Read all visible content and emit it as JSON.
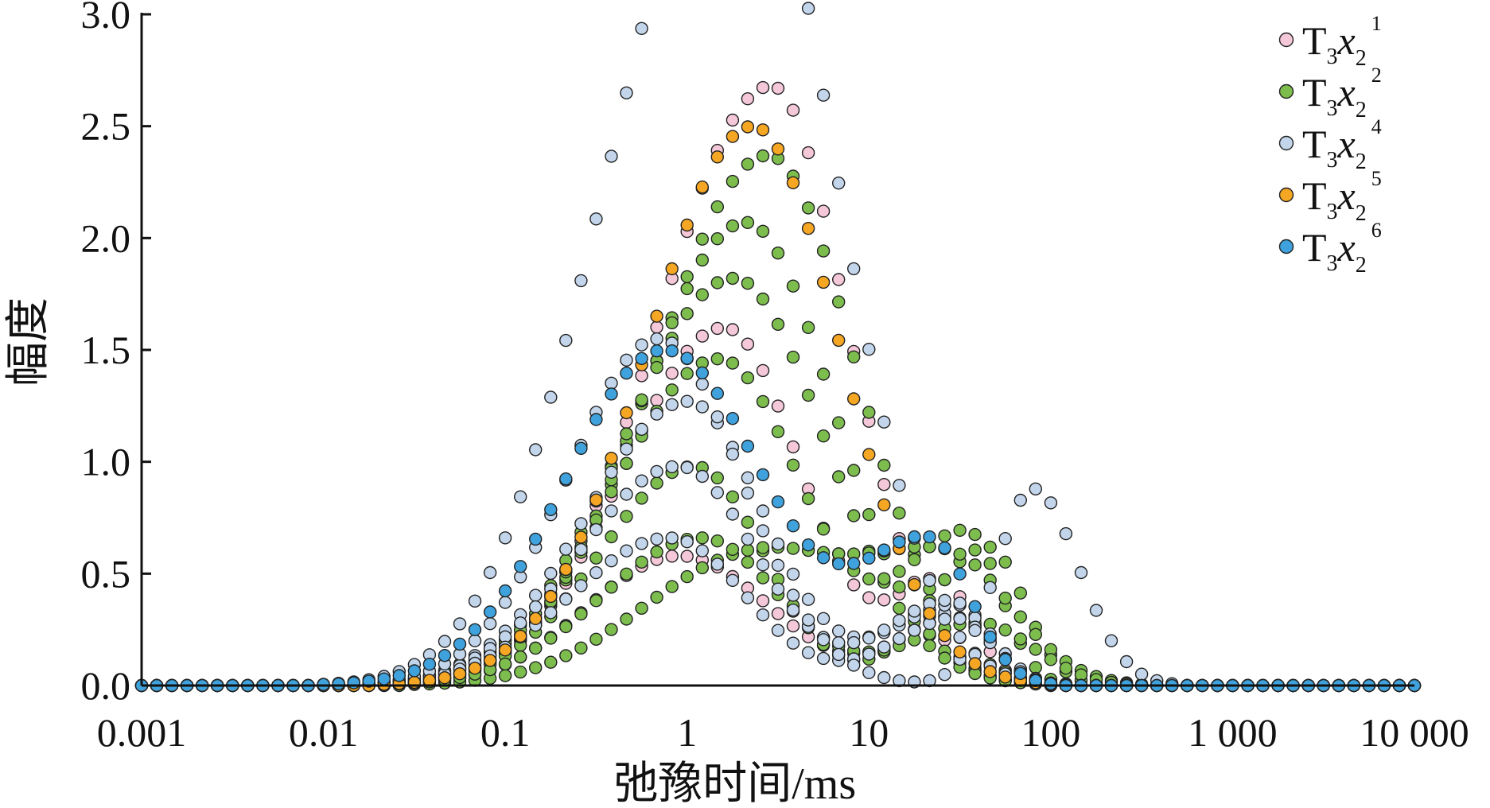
{
  "chart_data": {
    "type": "scatter",
    "title": "",
    "xlabel": "弛豫时间/ms",
    "ylabel": "幅度",
    "xscale": "log",
    "xlim": [
      0.001,
      10000
    ],
    "ylim": [
      0,
      3.0
    ],
    "xticks": [
      0.001,
      0.01,
      0.1,
      1,
      10,
      100,
      1000,
      10000
    ],
    "xtick_labels": [
      "0.001",
      "0.01",
      "0.1",
      "1",
      "10",
      "100",
      "1 000",
      "10 000"
    ],
    "yticks": [
      0.0,
      0.5,
      1.0,
      1.5,
      2.0,
      2.5,
      3.0
    ],
    "ytick_labels": [
      "0.0",
      "0.5",
      "1.0",
      "1.5",
      "2.0",
      "2.5",
      "3.0"
    ],
    "grid": false,
    "legend_position": "top-right",
    "points_per_decade": 12,
    "series": [
      {
        "name": "T3x2^1",
        "legend": {
          "main": "T",
          "sub1": "3",
          "italic": "x",
          "sub2": "2",
          "sup": "1"
        },
        "color": "#f4c7d9",
        "curves": [
          {
            "peaks": [
              {
                "x": 2.9,
                "y": 2.68,
                "wl": 0.62,
                "wr": 0.42
              }
            ]
          },
          {
            "peaks": [
              {
                "x": 1.6,
                "y": 1.6,
                "wl": 0.55,
                "wr": 0.42
              },
              {
                "x": 25,
                "y": 0.45,
                "wl": 0.25,
                "wr": 0.18
              }
            ]
          },
          {
            "peaks": [
              {
                "x": 0.9,
                "y": 0.58,
                "wl": 0.5,
                "wr": 0.5
              },
              {
                "x": 30,
                "y": 0.3,
                "wl": 0.3,
                "wr": 0.2
              }
            ]
          }
        ]
      },
      {
        "name": "T3x2^2",
        "legend": {
          "main": "T",
          "sub1": "3",
          "italic": "x",
          "sub2": "2",
          "sup": "2"
        },
        "color": "#7dbd4e",
        "curves": [
          {
            "peaks": [
              {
                "x": 2.8,
                "y": 2.37,
                "wl": 0.62,
                "wr": 0.48
              }
            ]
          },
          {
            "peaks": [
              {
                "x": 2.1,
                "y": 2.07,
                "wl": 0.58,
                "wr": 0.48
              }
            ]
          },
          {
            "peaks": [
              {
                "x": 1.8,
                "y": 1.82,
                "wl": 0.6,
                "wr": 0.5
              }
            ]
          },
          {
            "peaks": [
              {
                "x": 1.5,
                "y": 1.46,
                "wl": 0.58,
                "wr": 0.45
              },
              {
                "x": 35,
                "y": 0.68,
                "wl": 0.35,
                "wr": 0.18
              }
            ]
          },
          {
            "peaks": [
              {
                "x": 1.1,
                "y": 0.98,
                "wl": 0.52,
                "wr": 0.38
              },
              {
                "x": 45,
                "y": 0.62,
                "wl": 0.32,
                "wr": 0.2
              }
            ]
          },
          {
            "peaks": [
              {
                "x": 2.3,
                "y": 0.58,
                "wl": 0.6,
                "wr": 0.5
              },
              {
                "x": 28,
                "y": 0.55,
                "wl": 0.45,
                "wr": 0.35
              }
            ]
          },
          {
            "peaks": [
              {
                "x": 1.2,
                "y": 0.66,
                "wl": 0.55,
                "wr": 0.42
              },
              {
                "x": 40,
                "y": 0.28,
                "wl": 0.4,
                "wr": 0.3
              }
            ]
          }
        ]
      },
      {
        "name": "T3x2^4",
        "legend": {
          "main": "T",
          "sub1": "3",
          "italic": "x",
          "sub2": "2",
          "sup": "4"
        },
        "color": "#c2d5ea",
        "curves": [
          {
            "peaks": [
              {
                "x": 0.85,
                "y": 2.75,
                "wl": 0.55,
                "wr": 0.38
              },
              {
                "x": 3.0,
                "y": 2.85,
                "wl": 0.35,
                "wr": 0.45
              }
            ]
          },
          {
            "peaks": [
              {
                "x": 1.0,
                "y": 1.27,
                "wl": 0.55,
                "wr": 0.42
              },
              {
                "x": 30,
                "y": 0.36,
                "wl": 0.35,
                "wr": 0.2
              }
            ]
          },
          {
            "peaks": [
              {
                "x": 0.9,
                "y": 0.98,
                "wl": 0.55,
                "wr": 0.42
              },
              {
                "x": 28,
                "y": 0.38,
                "wl": 0.35,
                "wr": 0.2
              }
            ]
          },
          {
            "peaks": [
              {
                "x": 0.8,
                "y": 0.66,
                "wl": 0.55,
                "wr": 0.42
              },
              {
                "x": 30,
                "y": 0.3,
                "wl": 0.35,
                "wr": 0.2
              }
            ]
          },
          {
            "peaks": [
              {
                "x": 0.7,
                "y": 1.55,
                "wl": 0.5,
                "wr": 0.45
              },
              {
                "x": 80,
                "y": 0.88,
                "wl": 0.2,
                "wr": 0.25
              }
            ]
          }
        ]
      },
      {
        "name": "T3x2^5",
        "legend": {
          "main": "T",
          "sub1": "3",
          "italic": "x",
          "sub2": "2",
          "sup": "5"
        },
        "color": "#f5a623",
        "curves": [
          {
            "peaks": [
              {
                "x": 2.3,
                "y": 2.5,
                "wl": 0.58,
                "wr": 0.48
              }
            ]
          }
        ]
      },
      {
        "name": "T3x2^6",
        "legend": {
          "main": "T",
          "sub1": "3",
          "italic": "x",
          "sub2": "2",
          "sup": "6"
        },
        "color": "#3fa2dc",
        "curves": [
          {
            "peaks": [
              {
                "x": 0.75,
                "y": 1.5,
                "wl": 0.55,
                "wr": 0.55
              },
              {
                "x": 22,
                "y": 0.62,
                "wl": 0.35,
                "wr": 0.22
              }
            ]
          }
        ]
      }
    ]
  }
}
